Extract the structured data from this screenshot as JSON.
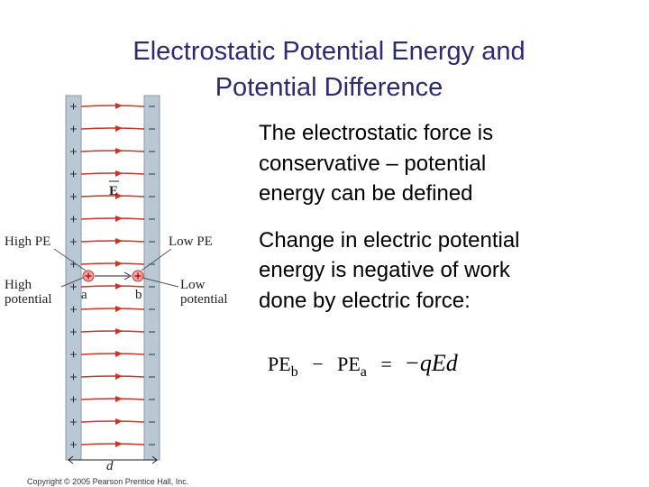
{
  "slide": {
    "title_lines": [
      "Electrostatic Potential Energy and",
      "Potential Difference"
    ],
    "bullets": [
      [
        "The electrostatic force is",
        "conservative – potential",
        "energy can be defined"
      ],
      [
        "Change in electric potential",
        "energy is negative of work",
        "done by electric force:"
      ]
    ],
    "equation": {
      "term_1": "PE",
      "term_1_sub": "b",
      "minus": "−",
      "term_2": "PE",
      "term_2_sub": "a",
      "equals": "=",
      "rhs": "−qEd"
    }
  },
  "figure": {
    "field_label": "E",
    "high_pe": "High PE",
    "low_pe": "Low PE",
    "high_potential": [
      "High",
      "potential"
    ],
    "low_potential": [
      "Low",
      "potential"
    ],
    "point_a": "a",
    "point_b": "b",
    "distance": "d",
    "copyright": "Copyright © 2005 Pearson Prentice Hall, Inc."
  }
}
